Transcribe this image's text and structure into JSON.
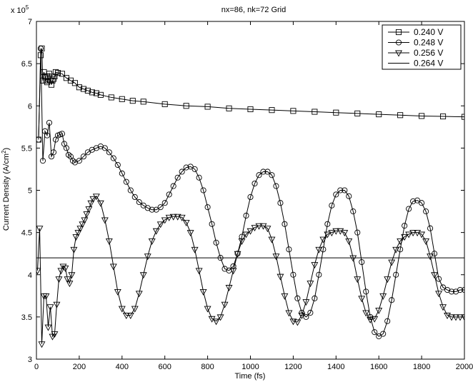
{
  "chart_data": {
    "type": "line",
    "title": "nx=86, nk=72 Grid",
    "xlabel": "Time (fs)",
    "ylabel": "Current Density (A/cm",
    "ylabel_sup": "2",
    "ylabel_close": ")",
    "y_exponent_base": "x 10",
    "y_exponent_power": "5",
    "xlim": [
      0,
      2000
    ],
    "ylim": [
      3,
      7
    ],
    "x_ticks": [
      0,
      200,
      400,
      600,
      800,
      1000,
      1200,
      1400,
      1600,
      1800,
      2000
    ],
    "y_ticks": [
      3,
      3.5,
      4,
      4.5,
      5,
      5.5,
      6,
      6.5,
      7
    ],
    "x_tick_labels": [
      "0",
      "200",
      "400",
      "600",
      "800",
      "1000",
      "1200",
      "1400",
      "1600",
      "1800",
      "2000"
    ],
    "y_tick_labels": [
      "3",
      "3.5",
      "4",
      "4.5",
      "5",
      "5.5",
      "6",
      "6.5",
      "7"
    ],
    "legend_position": "top-right",
    "grid": false,
    "series": [
      {
        "name": "0.240 V",
        "marker": "square",
        "x": [
          10,
          20,
          25,
          30,
          35,
          40,
          45,
          50,
          55,
          60,
          65,
          70,
          75,
          80,
          85,
          90,
          100,
          120,
          140,
          160,
          180,
          200,
          220,
          240,
          260,
          280,
          300,
          350,
          400,
          450,
          500,
          600,
          700,
          800,
          900,
          1000,
          1100,
          1200,
          1300,
          1400,
          1500,
          1600,
          1700,
          1800,
          1900,
          2000
        ],
        "y": [
          5.6,
          6.6,
          6.68,
          6.3,
          6.4,
          6.35,
          6.3,
          6.28,
          6.35,
          6.38,
          6.3,
          6.25,
          6.3,
          6.32,
          6.35,
          6.4,
          6.39,
          6.38,
          6.33,
          6.3,
          6.27,
          6.22,
          6.2,
          6.18,
          6.16,
          6.15,
          6.13,
          6.1,
          6.08,
          6.06,
          6.05,
          6.02,
          6.0,
          5.99,
          5.97,
          5.96,
          5.95,
          5.94,
          5.93,
          5.92,
          5.91,
          5.9,
          5.89,
          5.88,
          5.875,
          5.87
        ]
      },
      {
        "name": "0.248 V",
        "marker": "circle",
        "x": [
          10,
          20,
          30,
          40,
          50,
          60,
          70,
          80,
          90,
          100,
          110,
          120,
          130,
          140,
          150,
          160,
          170,
          180,
          200,
          220,
          240,
          260,
          280,
          300,
          320,
          340,
          360,
          380,
          400,
          420,
          440,
          460,
          480,
          500,
          520,
          540,
          560,
          580,
          600,
          620,
          640,
          660,
          680,
          700,
          720,
          740,
          760,
          780,
          800,
          820,
          840,
          860,
          880,
          900,
          920,
          940,
          960,
          980,
          1000,
          1020,
          1040,
          1060,
          1080,
          1100,
          1120,
          1140,
          1160,
          1180,
          1200,
          1220,
          1240,
          1260,
          1280,
          1300,
          1320,
          1340,
          1360,
          1380,
          1400,
          1420,
          1440,
          1460,
          1480,
          1500,
          1520,
          1540,
          1560,
          1580,
          1600,
          1620,
          1640,
          1660,
          1680,
          1700,
          1720,
          1740,
          1760,
          1780,
          1800,
          1820,
          1840,
          1860,
          1880,
          1900,
          1920,
          1940,
          1960,
          1980,
          2000
        ],
        "y": [
          5.6,
          6.68,
          5.35,
          5.7,
          5.65,
          5.8,
          5.4,
          5.45,
          5.6,
          5.65,
          5.66,
          5.67,
          5.55,
          5.5,
          5.42,
          5.4,
          5.35,
          5.33,
          5.35,
          5.4,
          5.45,
          5.48,
          5.5,
          5.52,
          5.5,
          5.45,
          5.38,
          5.3,
          5.2,
          5.1,
          5.0,
          4.92,
          4.86,
          4.82,
          4.79,
          4.77,
          4.77,
          4.8,
          4.85,
          4.95,
          5.05,
          5.15,
          5.22,
          5.27,
          5.28,
          5.25,
          5.15,
          5.0,
          4.8,
          4.6,
          4.38,
          4.2,
          4.07,
          4.05,
          4.1,
          4.25,
          4.45,
          4.7,
          4.92,
          5.08,
          5.18,
          5.22,
          5.22,
          5.18,
          5.05,
          4.85,
          4.6,
          4.3,
          4.0,
          3.72,
          3.55,
          3.5,
          3.55,
          3.72,
          4.0,
          4.3,
          4.6,
          4.82,
          4.95,
          5.0,
          5.0,
          4.93,
          4.75,
          4.5,
          4.15,
          3.8,
          3.5,
          3.32,
          3.27,
          3.3,
          3.45,
          3.7,
          4.0,
          4.3,
          4.58,
          4.78,
          4.87,
          4.88,
          4.85,
          4.75,
          4.55,
          4.25,
          3.95,
          3.85,
          3.82,
          3.8,
          3.8,
          3.82,
          3.82
        ]
      },
      {
        "name": "0.256 V",
        "marker": "triangle-down",
        "x": [
          5,
          15,
          25,
          35,
          45,
          55,
          65,
          75,
          85,
          95,
          105,
          115,
          125,
          135,
          145,
          155,
          165,
          175,
          185,
          195,
          205,
          215,
          225,
          235,
          245,
          255,
          265,
          280,
          300,
          320,
          340,
          360,
          380,
          400,
          420,
          440,
          460,
          480,
          500,
          520,
          540,
          560,
          580,
          600,
          620,
          640,
          660,
          680,
          700,
          720,
          740,
          760,
          780,
          800,
          820,
          840,
          860,
          880,
          900,
          920,
          940,
          960,
          980,
          1000,
          1020,
          1040,
          1060,
          1080,
          1100,
          1120,
          1140,
          1160,
          1180,
          1200,
          1220,
          1240,
          1260,
          1280,
          1300,
          1320,
          1340,
          1360,
          1380,
          1400,
          1420,
          1440,
          1460,
          1480,
          1500,
          1520,
          1540,
          1560,
          1580,
          1600,
          1620,
          1640,
          1660,
          1680,
          1700,
          1720,
          1740,
          1760,
          1780,
          1800,
          1820,
          1840,
          1860,
          1880,
          1900,
          1920,
          1940,
          1960,
          1980,
          2000
        ],
        "y": [
          4.05,
          4.55,
          3.18,
          3.75,
          3.75,
          3.38,
          3.62,
          3.27,
          3.3,
          3.65,
          3.95,
          4.05,
          4.1,
          4.08,
          3.95,
          3.9,
          4.0,
          4.3,
          4.45,
          4.5,
          4.55,
          4.6,
          4.65,
          4.72,
          4.78,
          4.85,
          4.9,
          4.93,
          4.85,
          4.65,
          4.4,
          4.1,
          3.8,
          3.6,
          3.52,
          3.52,
          3.6,
          3.78,
          4.0,
          4.22,
          4.4,
          4.52,
          4.6,
          4.65,
          4.68,
          4.69,
          4.69,
          4.68,
          4.62,
          4.5,
          4.3,
          4.05,
          3.8,
          3.6,
          3.48,
          3.45,
          3.5,
          3.65,
          3.85,
          4.05,
          4.25,
          4.4,
          4.48,
          4.52,
          4.56,
          4.58,
          4.58,
          4.55,
          4.42,
          4.22,
          3.98,
          3.75,
          3.55,
          3.45,
          3.44,
          3.52,
          3.68,
          3.9,
          4.12,
          4.3,
          4.42,
          4.48,
          4.5,
          4.52,
          4.52,
          4.5,
          4.4,
          4.2,
          3.95,
          3.72,
          3.55,
          3.47,
          3.48,
          3.58,
          3.75,
          3.95,
          4.15,
          4.3,
          4.4,
          4.45,
          4.48,
          4.5,
          4.5,
          4.48,
          4.4,
          4.22,
          4.0,
          3.78,
          3.62,
          3.52,
          3.5,
          3.5,
          3.5,
          3.5
        ]
      },
      {
        "name": "0.264 V",
        "marker": "none",
        "x": [
          0,
          2000
        ],
        "y": [
          4.2,
          4.2
        ]
      }
    ]
  }
}
